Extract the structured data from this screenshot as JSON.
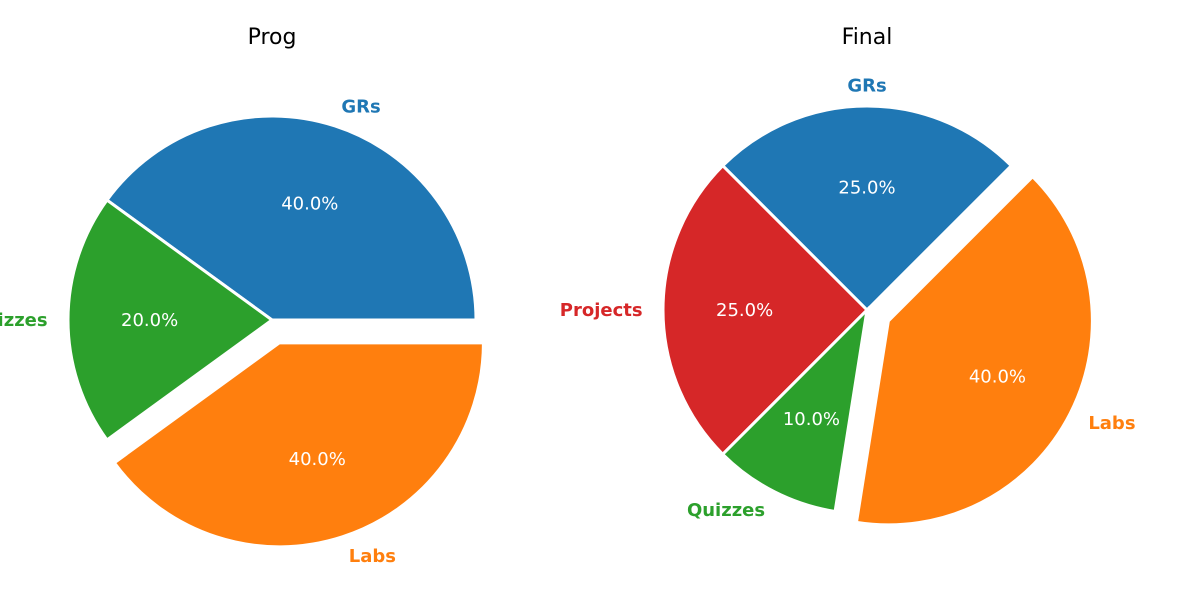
{
  "chart_data": [
    {
      "type": "pie",
      "title": "Prog",
      "slices": [
        {
          "label": "GRs",
          "value": 40,
          "pct_label": "40.0%",
          "color": "#1f77b4",
          "exploded": false
        },
        {
          "label": "Quizzes",
          "value": 20,
          "pct_label": "20.0%",
          "color": "#2ca02c",
          "exploded": false
        },
        {
          "label": "Labs",
          "value": 40,
          "pct_label": "40.0%",
          "color": "#ff7f0e",
          "exploded": true
        }
      ]
    },
    {
      "type": "pie",
      "title": "Final",
      "slices": [
        {
          "label": "GRs",
          "value": 25,
          "pct_label": "25.0%",
          "color": "#1f77b4",
          "exploded": false
        },
        {
          "label": "Projects",
          "value": 25,
          "pct_label": "25.0%",
          "color": "#d62728",
          "exploded": false
        },
        {
          "label": "Quizzes",
          "value": 10,
          "pct_label": "10.0%",
          "color": "#2ca02c",
          "exploded": false
        },
        {
          "label": "Labs",
          "value": 40,
          "pct_label": "40.0%",
          "color": "#ff7f0e",
          "exploded": true
        }
      ]
    }
  ]
}
